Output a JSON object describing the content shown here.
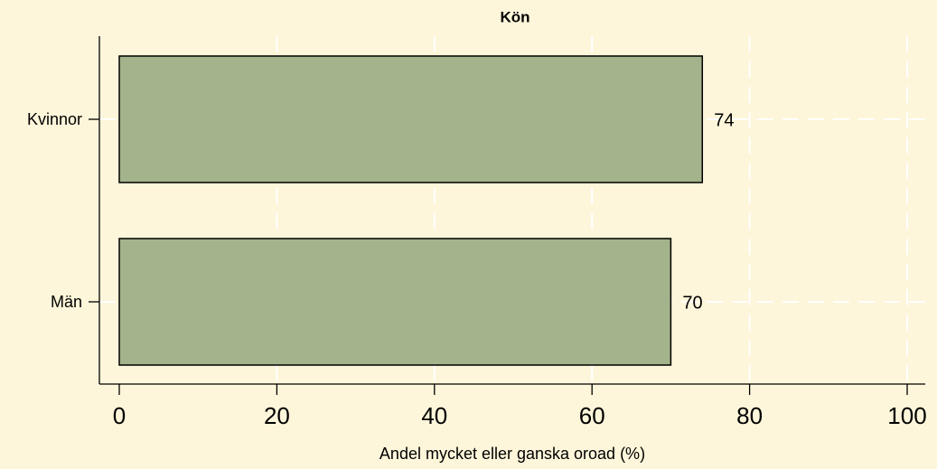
{
  "chart_data": {
    "type": "bar",
    "orientation": "horizontal",
    "title": "Kön",
    "categories": [
      "Kvinnor",
      "Män"
    ],
    "values": [
      74,
      70
    ],
    "color": "#a3b38b",
    "xlabel": "Andel mycket eller ganska oroad (%)",
    "xlim": [
      0,
      100
    ],
    "xticks": [
      0,
      20,
      40,
      60,
      80,
      100
    ],
    "grid": true
  }
}
